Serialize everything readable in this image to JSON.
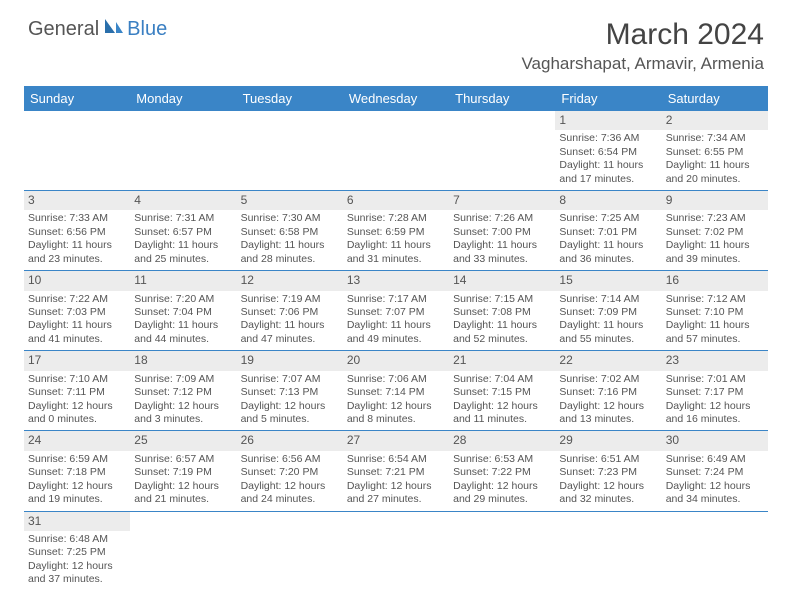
{
  "logo": {
    "part1": "General",
    "part2": "Blue"
  },
  "title": "March 2024",
  "location": "Vagharshapat, Armavir, Armenia",
  "colors": {
    "header_bg": "#3a85c7",
    "header_text": "#ffffff",
    "daynum_bg": "#ececec",
    "border": "#3a85c7",
    "logo_blue": "#3a7fc2",
    "text": "#555555"
  },
  "day_headers": [
    "Sunday",
    "Monday",
    "Tuesday",
    "Wednesday",
    "Thursday",
    "Friday",
    "Saturday"
  ],
  "weeks": [
    {
      "nums": [
        "",
        "",
        "",
        "",
        "",
        "1",
        "2"
      ],
      "cells": [
        null,
        null,
        null,
        null,
        null,
        {
          "sunrise": "7:36 AM",
          "sunset": "6:54 PM",
          "dl1": "11 hours",
          "dl2": "and 17 minutes."
        },
        {
          "sunrise": "7:34 AM",
          "sunset": "6:55 PM",
          "dl1": "11 hours",
          "dl2": "and 20 minutes."
        }
      ]
    },
    {
      "nums": [
        "3",
        "4",
        "5",
        "6",
        "7",
        "8",
        "9"
      ],
      "cells": [
        {
          "sunrise": "7:33 AM",
          "sunset": "6:56 PM",
          "dl1": "11 hours",
          "dl2": "and 23 minutes."
        },
        {
          "sunrise": "7:31 AM",
          "sunset": "6:57 PM",
          "dl1": "11 hours",
          "dl2": "and 25 minutes."
        },
        {
          "sunrise": "7:30 AM",
          "sunset": "6:58 PM",
          "dl1": "11 hours",
          "dl2": "and 28 minutes."
        },
        {
          "sunrise": "7:28 AM",
          "sunset": "6:59 PM",
          "dl1": "11 hours",
          "dl2": "and 31 minutes."
        },
        {
          "sunrise": "7:26 AM",
          "sunset": "7:00 PM",
          "dl1": "11 hours",
          "dl2": "and 33 minutes."
        },
        {
          "sunrise": "7:25 AM",
          "sunset": "7:01 PM",
          "dl1": "11 hours",
          "dl2": "and 36 minutes."
        },
        {
          "sunrise": "7:23 AM",
          "sunset": "7:02 PM",
          "dl1": "11 hours",
          "dl2": "and 39 minutes."
        }
      ]
    },
    {
      "nums": [
        "10",
        "11",
        "12",
        "13",
        "14",
        "15",
        "16"
      ],
      "cells": [
        {
          "sunrise": "7:22 AM",
          "sunset": "7:03 PM",
          "dl1": "11 hours",
          "dl2": "and 41 minutes."
        },
        {
          "sunrise": "7:20 AM",
          "sunset": "7:04 PM",
          "dl1": "11 hours",
          "dl2": "and 44 minutes."
        },
        {
          "sunrise": "7:19 AM",
          "sunset": "7:06 PM",
          "dl1": "11 hours",
          "dl2": "and 47 minutes."
        },
        {
          "sunrise": "7:17 AM",
          "sunset": "7:07 PM",
          "dl1": "11 hours",
          "dl2": "and 49 minutes."
        },
        {
          "sunrise": "7:15 AM",
          "sunset": "7:08 PM",
          "dl1": "11 hours",
          "dl2": "and 52 minutes."
        },
        {
          "sunrise": "7:14 AM",
          "sunset": "7:09 PM",
          "dl1": "11 hours",
          "dl2": "and 55 minutes."
        },
        {
          "sunrise": "7:12 AM",
          "sunset": "7:10 PM",
          "dl1": "11 hours",
          "dl2": "and 57 minutes."
        }
      ]
    },
    {
      "nums": [
        "17",
        "18",
        "19",
        "20",
        "21",
        "22",
        "23"
      ],
      "cells": [
        {
          "sunrise": "7:10 AM",
          "sunset": "7:11 PM",
          "dl1": "12 hours",
          "dl2": "and 0 minutes."
        },
        {
          "sunrise": "7:09 AM",
          "sunset": "7:12 PM",
          "dl1": "12 hours",
          "dl2": "and 3 minutes."
        },
        {
          "sunrise": "7:07 AM",
          "sunset": "7:13 PM",
          "dl1": "12 hours",
          "dl2": "and 5 minutes."
        },
        {
          "sunrise": "7:06 AM",
          "sunset": "7:14 PM",
          "dl1": "12 hours",
          "dl2": "and 8 minutes."
        },
        {
          "sunrise": "7:04 AM",
          "sunset": "7:15 PM",
          "dl1": "12 hours",
          "dl2": "and 11 minutes."
        },
        {
          "sunrise": "7:02 AM",
          "sunset": "7:16 PM",
          "dl1": "12 hours",
          "dl2": "and 13 minutes."
        },
        {
          "sunrise": "7:01 AM",
          "sunset": "7:17 PM",
          "dl1": "12 hours",
          "dl2": "and 16 minutes."
        }
      ]
    },
    {
      "nums": [
        "24",
        "25",
        "26",
        "27",
        "28",
        "29",
        "30"
      ],
      "cells": [
        {
          "sunrise": "6:59 AM",
          "sunset": "7:18 PM",
          "dl1": "12 hours",
          "dl2": "and 19 minutes."
        },
        {
          "sunrise": "6:57 AM",
          "sunset": "7:19 PM",
          "dl1": "12 hours",
          "dl2": "and 21 minutes."
        },
        {
          "sunrise": "6:56 AM",
          "sunset": "7:20 PM",
          "dl1": "12 hours",
          "dl2": "and 24 minutes."
        },
        {
          "sunrise": "6:54 AM",
          "sunset": "7:21 PM",
          "dl1": "12 hours",
          "dl2": "and 27 minutes."
        },
        {
          "sunrise": "6:53 AM",
          "sunset": "7:22 PM",
          "dl1": "12 hours",
          "dl2": "and 29 minutes."
        },
        {
          "sunrise": "6:51 AM",
          "sunset": "7:23 PM",
          "dl1": "12 hours",
          "dl2": "and 32 minutes."
        },
        {
          "sunrise": "6:49 AM",
          "sunset": "7:24 PM",
          "dl1": "12 hours",
          "dl2": "and 34 minutes."
        }
      ]
    },
    {
      "nums": [
        "31",
        "",
        "",
        "",
        "",
        "",
        ""
      ],
      "cells": [
        {
          "sunrise": "6:48 AM",
          "sunset": "7:25 PM",
          "dl1": "12 hours",
          "dl2": "and 37 minutes."
        },
        null,
        null,
        null,
        null,
        null,
        null
      ],
      "last": true
    }
  ]
}
